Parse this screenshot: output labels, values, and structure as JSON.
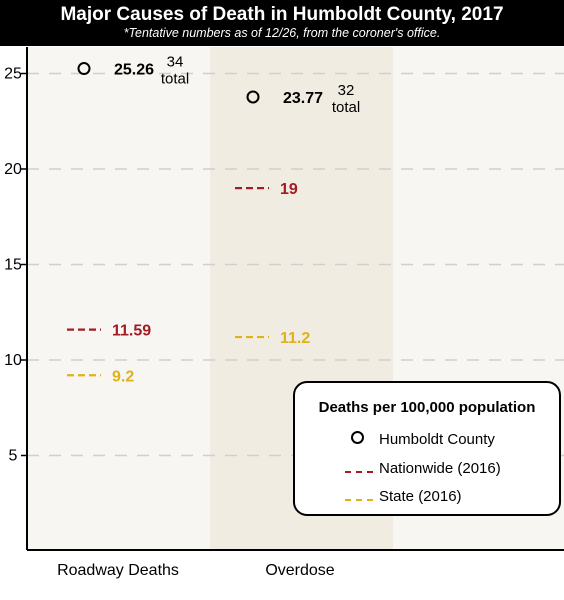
{
  "header": {
    "title": "Major Causes of Death in Humboldt County, 2017",
    "subtitle": "*Tentative numbers as of 12/26, from the coroner's office."
  },
  "colors": {
    "county": "#000000",
    "nationwide": "#a31b24",
    "state": "#e0b21a",
    "band_light": "#f7f6f2",
    "band_dark": "#f0ece2"
  },
  "chart_data": {
    "type": "scatter",
    "categories": [
      "Roadway Deaths",
      "Overdose"
    ],
    "ylim": [
      0,
      26
    ],
    "yticks": [
      5,
      10,
      15,
      20,
      25
    ],
    "grid": true,
    "legend_position": "bottom-right",
    "series": [
      {
        "name": "Humboldt County",
        "values": [
          25.26,
          23.77
        ],
        "labels": [
          "25.26",
          "23.77"
        ],
        "totals": [
          "34",
          "32"
        ],
        "total_word": "total"
      },
      {
        "name": "Nationwide (2016)",
        "values": [
          11.59,
          19
        ],
        "labels": [
          "11.59",
          "19"
        ]
      },
      {
        "name": "State (2016)",
        "values": [
          9.2,
          11.2
        ],
        "labels": [
          "9.2",
          "11.2"
        ]
      }
    ]
  },
  "legend": {
    "title": "Deaths per 100,000 population",
    "items": [
      {
        "label": "Humboldt County"
      },
      {
        "label": "Nationwide (2016)"
      },
      {
        "label": "State (2016)"
      }
    ]
  }
}
